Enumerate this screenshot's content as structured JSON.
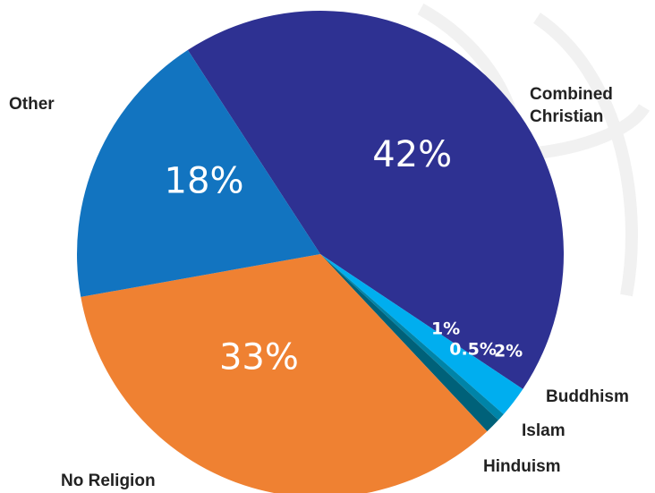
{
  "chart_data": {
    "type": "pie",
    "title": "",
    "slices": [
      {
        "name": "Combined Christian",
        "value": 42,
        "label": "42%",
        "color": "#2e3192"
      },
      {
        "name": "Buddhism",
        "value": 2,
        "label": "2%",
        "color": "#00aeef"
      },
      {
        "name": "Islam",
        "value": 0.5,
        "label": "0.5%",
        "color": "#0084a8"
      },
      {
        "name": "Hinduism",
        "value": 1,
        "label": "1%",
        "color": "#006179"
      },
      {
        "name": "No Religion",
        "value": 33,
        "label": "33%",
        "color": "#ef8132"
      },
      {
        "name": "Other",
        "value": 18,
        "label": "18%",
        "color": "#1274c0"
      }
    ]
  }
}
